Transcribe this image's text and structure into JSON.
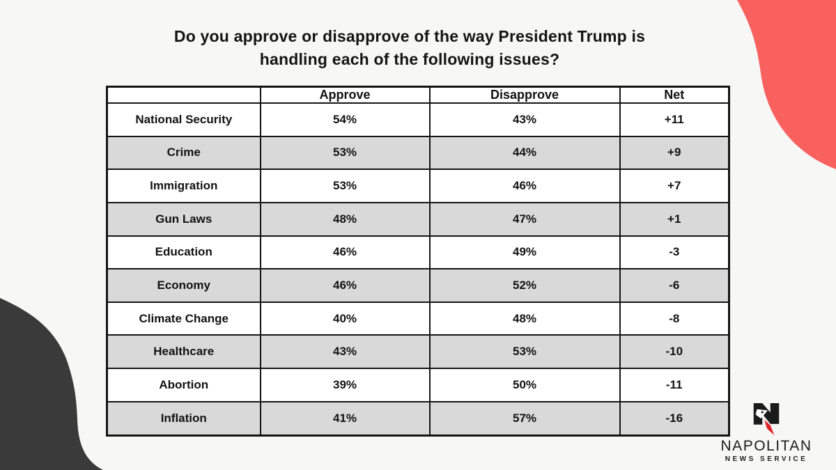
{
  "title": {
    "line1": "Do you approve or disapprove of the way President Trump is",
    "line2": "handling each of the following issues?"
  },
  "chart_data": {
    "type": "table",
    "title": "Do you approve or disapprove of the way President Trump is handling each of the following issues?",
    "columns": [
      "",
      "Approve",
      "Disapprove",
      "Net"
    ],
    "rows": [
      {
        "issue": "National Security",
        "approve": "54%",
        "disapprove": "43%",
        "net": "+11"
      },
      {
        "issue": "Crime",
        "approve": "53%",
        "disapprove": "44%",
        "net": "+9"
      },
      {
        "issue": "Immigration",
        "approve": "53%",
        "disapprove": "46%",
        "net": "+7"
      },
      {
        "issue": "Gun Laws",
        "approve": "48%",
        "disapprove": "47%",
        "net": "+1"
      },
      {
        "issue": "Education",
        "approve": "46%",
        "disapprove": "49%",
        "net": "-3"
      },
      {
        "issue": "Economy",
        "approve": "46%",
        "disapprove": "52%",
        "net": "-6"
      },
      {
        "issue": "Climate Change",
        "approve": "40%",
        "disapprove": "48%",
        "net": "-8"
      },
      {
        "issue": "Healthcare",
        "approve": "43%",
        "disapprove": "53%",
        "net": "-10"
      },
      {
        "issue": "Abortion",
        "approve": "39%",
        "disapprove": "50%",
        "net": "-11"
      },
      {
        "issue": "Inflation",
        "approve": "41%",
        "disapprove": "57%",
        "net": "-16"
      }
    ],
    "layout_hints": {
      "alternating_row_shading": true,
      "net_positive_rows_green": true,
      "net_negative_rows_red": true
    }
  },
  "logo": {
    "brand": "NAPOLITAN",
    "tagline": "NEWS SERVICE"
  },
  "colors": {
    "net_positive": "#1fbd61",
    "net_negative": "#f23a3c",
    "row_alt": "#d9d9d9",
    "table_border": "#141414",
    "blob_coral": "#f9615f",
    "blob_dark": "#3a3a3a",
    "page_background": "#f7f7f5",
    "logo_red": "#e02128"
  }
}
